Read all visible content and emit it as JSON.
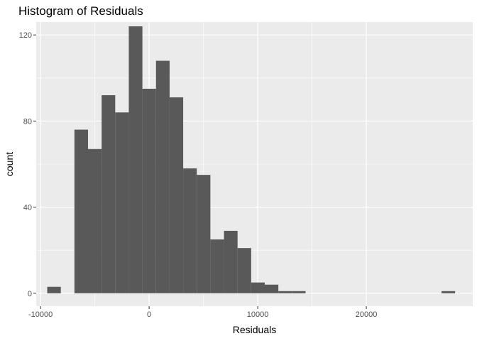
{
  "chart_data": {
    "type": "histogram",
    "title": "Histogram of Residuals",
    "xlabel": "Residuals",
    "ylabel": "count",
    "xlim": [
      -10400,
      29800
    ],
    "ylim": [
      -6,
      126
    ],
    "x_ticks": [
      -10000,
      0,
      10000,
      20000
    ],
    "x_tick_labels": [
      "-10000",
      "0",
      "10000",
      "20000"
    ],
    "y_ticks": [
      0,
      40,
      80,
      120
    ],
    "y_tick_labels": [
      "0",
      "40",
      "80",
      "120"
    ],
    "binwidth": 1252,
    "bin_centers": [
      -8758,
      -7506,
      -6254,
      -5002,
      -3750,
      -2498,
      -1246,
      6,
      1258,
      2510,
      3762,
      5014,
      6266,
      7518,
      8770,
      10022,
      11274,
      12526,
      13778,
      15030,
      16282,
      17534,
      18786,
      20038,
      21290,
      22542,
      23794,
      25046,
      26298,
      27550
    ],
    "counts": [
      3,
      0,
      76,
      67,
      92,
      84,
      124,
      95,
      108,
      91,
      58,
      55,
      25,
      29,
      21,
      5,
      4,
      1,
      1,
      0,
      0,
      0,
      0,
      0,
      0,
      0,
      0,
      0,
      0,
      1
    ],
    "grid": true,
    "legend": "none",
    "colors": {
      "panel_background": "#ebebeb",
      "grid_major": "#ffffff",
      "bar_fill": "#595959",
      "tick_text": "#4d4d4d",
      "tick_mark": "#333333"
    }
  }
}
